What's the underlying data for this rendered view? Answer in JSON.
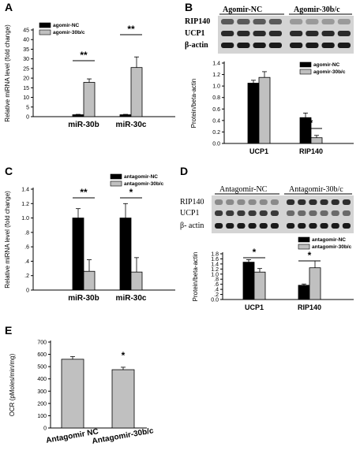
{
  "panel_labels": [
    "A",
    "B",
    "C",
    "D",
    "E"
  ],
  "blots": {
    "B": {
      "groups": [
        "Agomir-NC",
        "Agomir-30b/c"
      ],
      "rows": [
        "RIP140",
        "UCP1",
        "β-actin"
      ]
    },
    "D": {
      "groups": [
        "Antagomir-NC",
        "Antagomir-30b/c"
      ],
      "rows": [
        "RIP140",
        "UCP1",
        "β- actin"
      ]
    }
  },
  "chart_data": [
    {
      "id": "A",
      "type": "bar",
      "ylabel": "Relative miRNA level (fold change)",
      "ylim": [
        0,
        45
      ],
      "yticks": [
        "0",
        "5",
        "10",
        "15",
        "20",
        "25",
        "30",
        "35",
        "40",
        "45"
      ],
      "categories": [
        "miR-30b",
        "miR-30c"
      ],
      "legend_position": "top-left",
      "series": [
        {
          "name": "agomir-NC",
          "color": "#000000",
          "values": [
            1,
            1
          ],
          "errors": [
            0.2,
            0.2
          ]
        },
        {
          "name": "agomir-30b/c",
          "color": "#c0c0c0",
          "values": [
            17.8,
            25.5
          ],
          "errors": [
            1.8,
            5.5
          ]
        }
      ],
      "significance": [
        "**",
        "**"
      ]
    },
    {
      "id": "B",
      "type": "bar",
      "ylabel": "Protein/beta-actin",
      "ylim": [
        0,
        1.4
      ],
      "yticks": [
        "0.0",
        "0.2",
        "0.4",
        "0.6",
        "0.8",
        "1.0",
        "1.2",
        "1.4"
      ],
      "categories": [
        "UCP1",
        "RIP140"
      ],
      "legend_position": "top-right",
      "series": [
        {
          "name": "agomir-NC",
          "color": "#000000",
          "values": [
            1.05,
            0.45
          ],
          "errors": [
            0.05,
            0.08
          ]
        },
        {
          "name": "agomir-30b/c",
          "color": "#c0c0c0",
          "values": [
            1.15,
            0.1
          ],
          "errors": [
            0.1,
            0.04
          ]
        }
      ],
      "significance": [
        "",
        "*"
      ]
    },
    {
      "id": "C",
      "type": "bar",
      "ylabel": "Relative miRNA level (fold change)",
      "ylim": [
        0,
        1.4
      ],
      "yticks": [
        "0",
        ".2",
        ".4",
        ".6",
        ".8",
        "1.0",
        "1.2",
        "1.4"
      ],
      "categories": [
        "miR-30b",
        "miR-30c"
      ],
      "legend_position": "top-right",
      "series": [
        {
          "name": "antagomir-NC",
          "color": "#000000",
          "values": [
            1.0,
            1.0
          ],
          "errors": [
            0.13,
            0.2
          ]
        },
        {
          "name": "antagomir-30b/c",
          "color": "#c0c0c0",
          "values": [
            0.26,
            0.25
          ],
          "errors": [
            0.16,
            0.2
          ]
        }
      ],
      "significance": [
        "**",
        "*"
      ]
    },
    {
      "id": "D",
      "type": "bar",
      "ylabel": "Protein/beta-actin",
      "ylim": [
        0,
        1.8
      ],
      "yticks": [
        "0.0",
        ".2",
        ".4",
        ".6",
        ".8",
        "1.0",
        "1.2",
        "1.4",
        "1.6",
        "1.8"
      ],
      "categories": [
        "UCP1",
        "RIP140"
      ],
      "legend_position": "top-right",
      "series": [
        {
          "name": "antagomir-NC",
          "color": "#000000",
          "values": [
            1.47,
            0.56
          ],
          "errors": [
            0.1,
            0.05
          ]
        },
        {
          "name": "antagomir-30b/c",
          "color": "#c0c0c0",
          "values": [
            1.08,
            1.25
          ],
          "errors": [
            0.14,
            0.27
          ]
        }
      ],
      "significance": [
        "*",
        "*"
      ]
    },
    {
      "id": "E",
      "type": "bar",
      "ylabel": "OCR (pMoles/min/mg)",
      "ylim": [
        0,
        700
      ],
      "yticks": [
        "0",
        "100",
        "200",
        "300",
        "400",
        "500",
        "600",
        "700"
      ],
      "categories": [
        "Antagomir NC",
        "Antagomir-30b/c"
      ],
      "series": [
        {
          "name": "",
          "color": "#c0c0c0",
          "values": [
            560,
            475
          ],
          "errors": [
            22,
            20
          ]
        }
      ],
      "significance": [
        "",
        "*"
      ]
    }
  ]
}
